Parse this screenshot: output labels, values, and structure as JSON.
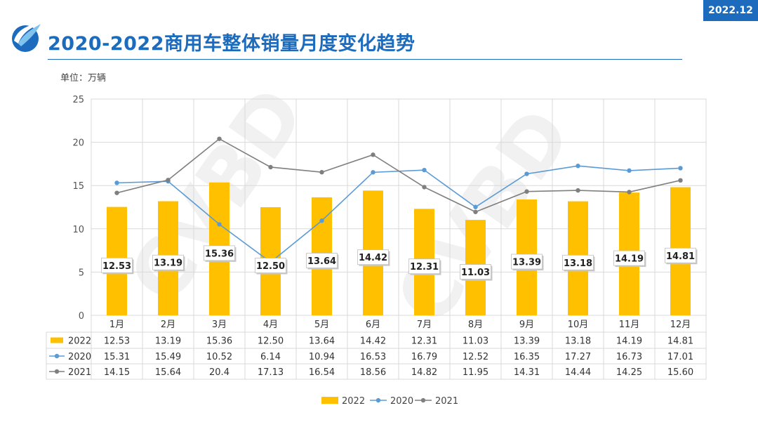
{
  "header": {
    "title": "2020-2022商用车整体销量月度变化趋势",
    "date": "2022.12",
    "unit": "单位：万辆"
  },
  "watermark": "CVBD",
  "colors": {
    "brand": "#1c6bbd",
    "bar2022": "#ffc000",
    "line2020": "#5b9bd5",
    "line2021": "#7f7f7f"
  },
  "chart_data": {
    "type": "bar",
    "title": "2020-2022商用车整体销量月度变化趋势",
    "ylabel": "单位：万辆",
    "ylim": [
      0,
      25
    ],
    "yticks": [
      0,
      5,
      10,
      15,
      20,
      25
    ],
    "grid": true,
    "legend_position": "bottom",
    "categories": [
      "1月",
      "2月",
      "3月",
      "4月",
      "5月",
      "6月",
      "7月",
      "8月",
      "9月",
      "10月",
      "11月",
      "12月"
    ],
    "series": [
      {
        "name": "2022",
        "type": "bar",
        "values": [
          12.53,
          13.19,
          15.36,
          12.5,
          13.64,
          14.42,
          12.31,
          11.03,
          13.39,
          13.18,
          14.19,
          14.81
        ],
        "labels": [
          "12.53",
          "13.19",
          "15.36",
          "12.50",
          "13.64",
          "14.42",
          "12.31",
          "11.03",
          "13.39",
          "13.18",
          "14.19",
          "14.81"
        ]
      },
      {
        "name": "2020",
        "type": "line",
        "values": [
          15.31,
          15.49,
          10.52,
          6.14,
          10.94,
          16.53,
          16.79,
          12.52,
          16.35,
          17.27,
          16.73,
          17.01
        ],
        "labels": [
          "15.31",
          "15.49",
          "10.52",
          "6.14",
          "10.94",
          "16.53",
          "16.79",
          "12.52",
          "16.35",
          "17.27",
          "16.73",
          "17.01"
        ]
      },
      {
        "name": "2021",
        "type": "line",
        "values": [
          14.15,
          15.64,
          20.4,
          17.13,
          16.54,
          18.56,
          14.82,
          11.95,
          14.31,
          14.44,
          14.25,
          15.6
        ],
        "labels": [
          "14.15",
          "15.64",
          "20.4",
          "17.13",
          "16.54",
          "18.56",
          "14.82",
          "11.95",
          "14.31",
          "14.44",
          "14.25",
          "15.60"
        ]
      }
    ]
  }
}
